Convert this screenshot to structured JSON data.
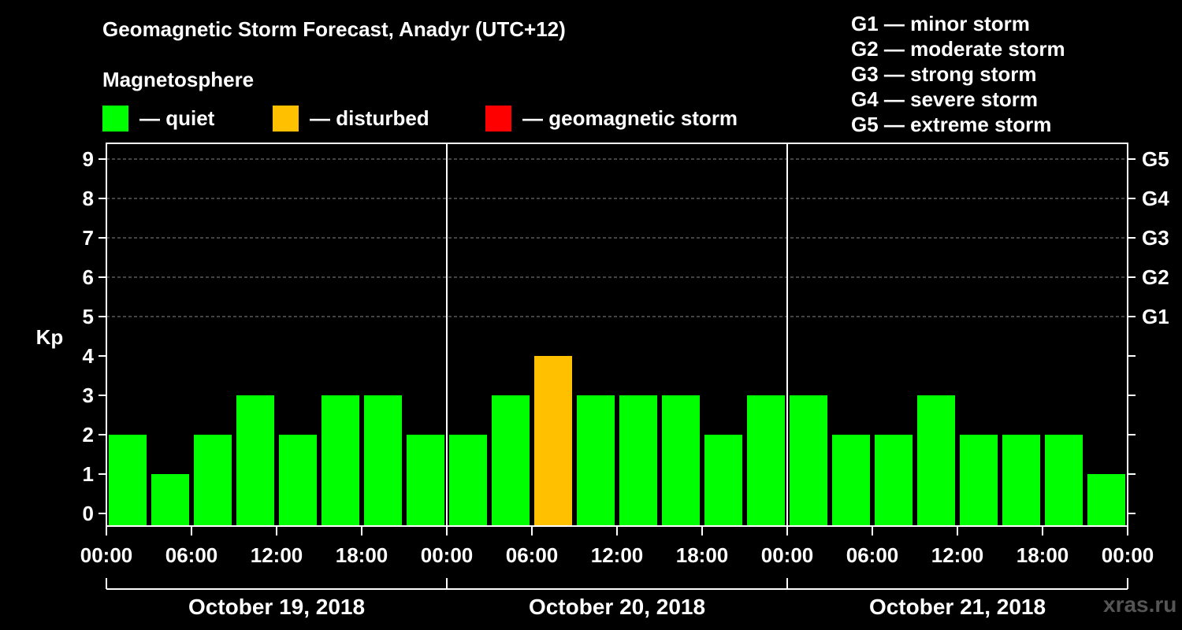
{
  "title": "Geomagnetic Storm Forecast, Anadyr (UTC+12)",
  "subtitle": "Magnetosphere",
  "legend": [
    {
      "label": "— quiet",
      "color": "#00ff00"
    },
    {
      "label": "— disturbed",
      "color": "#ffc000"
    },
    {
      "label": "— geomagnetic storm",
      "color": "#ff0000"
    }
  ],
  "storm_scale": [
    "G1 — minor storm",
    "G2 — moderate storm",
    "G3 — strong storm",
    "G4 — severe storm",
    "G5 — extreme storm"
  ],
  "watermark": "xras.ru",
  "chart_data": {
    "type": "bar",
    "title": "Geomagnetic Storm Forecast, Anadyr (UTC+12)",
    "ylabel": "Kp",
    "ylim": [
      0,
      9
    ],
    "yticks": [
      "0",
      "1",
      "2",
      "3",
      "4",
      "5",
      "6",
      "7",
      "8",
      "9"
    ],
    "right_axis_ticks": [
      {
        "kp": 5,
        "label": "G1"
      },
      {
        "kp": 6,
        "label": "G2"
      },
      {
        "kp": 7,
        "label": "G3"
      },
      {
        "kp": 8,
        "label": "G4"
      },
      {
        "kp": 9,
        "label": "G5"
      }
    ],
    "xtick_labels": [
      "00:00",
      "06:00",
      "12:00",
      "18:00",
      "00:00",
      "06:00",
      "12:00",
      "18:00",
      "00:00",
      "06:00",
      "12:00",
      "18:00",
      "00:00"
    ],
    "days": [
      "October 19, 2018",
      "October 20, 2018",
      "October 21, 2018"
    ],
    "interval_hours": 3,
    "values": [
      2,
      1,
      2,
      3,
      2,
      3,
      3,
      2,
      2,
      3,
      4,
      3,
      3,
      3,
      2,
      3,
      3,
      2,
      2,
      3,
      2,
      2,
      2,
      1
    ],
    "colors": {
      "quiet": "#00ff00",
      "disturbed": "#ffc000",
      "storm": "#ff0000"
    },
    "thresholds": {
      "disturbed": 4,
      "storm": 5
    },
    "gridlines": [
      5,
      6,
      7,
      8,
      9
    ]
  }
}
